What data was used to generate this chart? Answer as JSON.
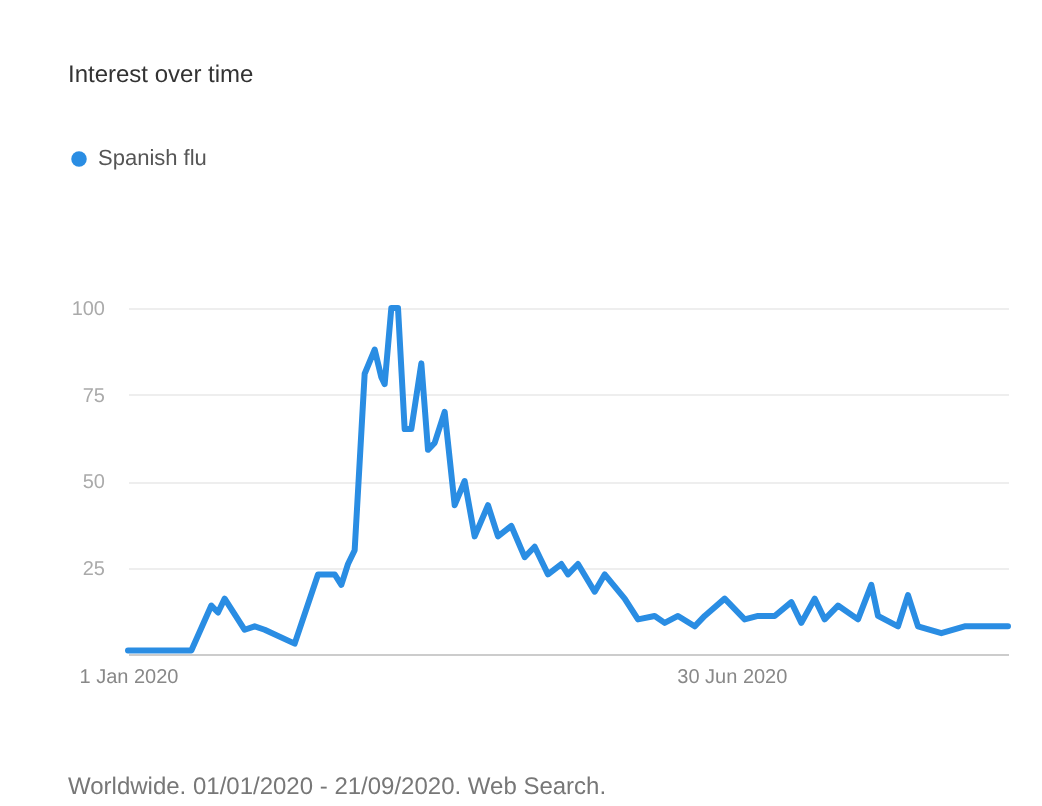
{
  "chart_data": {
    "type": "line",
    "title": "Interest over time",
    "x": [
      "2020-01-01",
      "2020-01-20",
      "2020-01-26",
      "2020-01-28",
      "2020-01-30",
      "2020-02-05",
      "2020-02-08",
      "2020-02-11",
      "2020-02-20",
      "2020-02-27",
      "2020-03-03",
      "2020-03-05",
      "2020-03-07",
      "2020-03-09",
      "2020-03-12",
      "2020-03-15",
      "2020-03-17",
      "2020-03-18",
      "2020-03-20",
      "2020-03-22",
      "2020-03-24",
      "2020-03-26",
      "2020-03-29",
      "2020-03-31",
      "2020-04-02",
      "2020-04-05",
      "2020-04-08",
      "2020-04-11",
      "2020-04-14",
      "2020-04-18",
      "2020-04-21",
      "2020-04-25",
      "2020-04-29",
      "2020-05-02",
      "2020-05-06",
      "2020-05-10",
      "2020-05-12",
      "2020-05-15",
      "2020-05-20",
      "2020-05-23",
      "2020-05-29",
      "2020-06-02",
      "2020-06-07",
      "2020-06-10",
      "2020-06-14",
      "2020-06-19",
      "2020-06-22",
      "2020-06-28",
      "2020-07-04",
      "2020-07-08",
      "2020-07-13",
      "2020-07-18",
      "2020-07-21",
      "2020-07-25",
      "2020-07-28",
      "2020-08-01",
      "2020-08-07",
      "2020-08-11",
      "2020-08-13",
      "2020-08-19",
      "2020-08-22",
      "2020-08-25",
      "2020-09-01",
      "2020-09-08",
      "2020-09-18",
      "2020-09-21"
    ],
    "series": [
      {
        "name": "Spanish flu",
        "color": "#2a8de3",
        "values": [
          1,
          1,
          14,
          12,
          16,
          7,
          8,
          7,
          3,
          23,
          23,
          20,
          26,
          30,
          81,
          88,
          80,
          78,
          100,
          100,
          65,
          65,
          84,
          59,
          61,
          70,
          43,
          50,
          34,
          43,
          34,
          37,
          28,
          31,
          23,
          26,
          23,
          26,
          18,
          23,
          16,
          10,
          11,
          9,
          11,
          8,
          11,
          16,
          10,
          11,
          11,
          15,
          9,
          16,
          10,
          14,
          10,
          20,
          11,
          8,
          17,
          8,
          6,
          8,
          8,
          8
        ]
      }
    ],
    "xlim": [
      "2020-01-01",
      "2020-09-21"
    ],
    "xticks": [
      {
        "value": "2020-01-01",
        "label": "1 Jan 2020"
      },
      {
        "value": "2020-06-30",
        "label": "30 Jun 2020"
      }
    ],
    "ylim": [
      0,
      100
    ],
    "yticks": [
      25,
      50,
      75,
      100
    ],
    "grid": "y",
    "legend": "top left",
    "annotations": [
      "Worldwide. 01/01/2020 - 21/09/2020. Web Search."
    ]
  }
}
